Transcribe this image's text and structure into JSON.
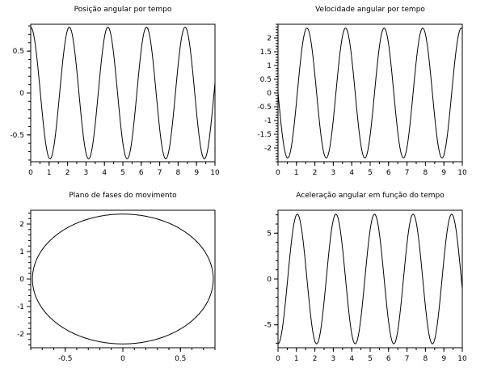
{
  "chart_data": [
    {
      "type": "line",
      "title": "Posição angular por tempo",
      "xlabel": "",
      "ylabel": "",
      "xlim": [
        0,
        10
      ],
      "ylim": [
        -0.82,
        0.82
      ],
      "xticks": [
        "0",
        "1",
        "2",
        "3",
        "4",
        "5",
        "6",
        "7",
        "8",
        "9",
        "10"
      ],
      "yticks": [
        "-0.5",
        "0",
        "0.5"
      ],
      "grid": false,
      "series": [
        {
          "kind": "cosine",
          "amplitude": 0.785,
          "omega": 3.0,
          "phase": 0.0,
          "x_range": [
            0,
            10
          ]
        }
      ]
    },
    {
      "type": "line",
      "title": "Velocidade angular por tempo",
      "xlabel": "",
      "ylabel": "",
      "xlim": [
        0,
        10
      ],
      "ylim": [
        -2.5,
        2.5
      ],
      "xticks": [
        "0",
        "1",
        "2",
        "3",
        "4",
        "5",
        "6",
        "7",
        "8",
        "9",
        "10"
      ],
      "yticks": [
        "-2",
        "-1.5",
        "-1",
        "-0.5",
        "0",
        "0.5",
        "1",
        "1.5",
        "2"
      ],
      "grid": false,
      "series": [
        {
          "kind": "sine",
          "amplitude": -2.36,
          "omega": 3.0,
          "phase": 0.0,
          "x_range": [
            0,
            10
          ]
        }
      ]
    },
    {
      "type": "line",
      "title": "Plano de fases do movimento",
      "xlabel": "",
      "ylabel": "",
      "xlim": [
        -0.8,
        0.8
      ],
      "ylim": [
        -2.5,
        2.5
      ],
      "xticks": [
        "-0.5",
        "0",
        "0.5"
      ],
      "yticks": [
        "-2",
        "-1",
        "0",
        "1",
        "2"
      ],
      "grid": false,
      "series": [
        {
          "kind": "ellipse",
          "rx": 0.785,
          "ry": 2.36,
          "center": [
            0,
            0
          ]
        }
      ]
    },
    {
      "type": "line",
      "title": "Aceleração angular em função do tempo",
      "xlabel": "",
      "ylabel": "",
      "xlim": [
        0,
        10
      ],
      "ylim": [
        -7.5,
        7.5
      ],
      "xticks": [
        "0",
        "1",
        "2",
        "3",
        "4",
        "5",
        "6",
        "7",
        "8",
        "9",
        "10"
      ],
      "yticks": [
        "-5",
        "0",
        "5"
      ],
      "grid": false,
      "series": [
        {
          "kind": "cosine",
          "amplitude": -7.07,
          "omega": 3.0,
          "phase": 0.0,
          "x_range": [
            0,
            10
          ]
        }
      ]
    }
  ]
}
